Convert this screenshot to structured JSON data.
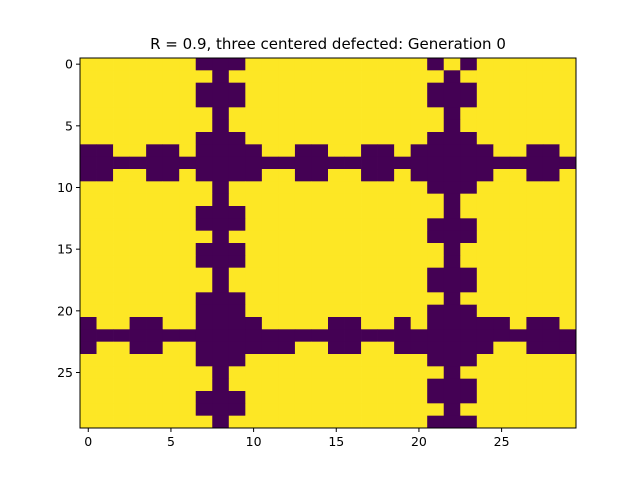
{
  "chart_data": {
    "type": "heatmap",
    "title": "R = 0.9, three centered defected: Generation 0",
    "xlabel": "",
    "ylabel": "",
    "xlim": [
      -0.5,
      29.5
    ],
    "ylim": [
      29.5,
      -0.5
    ],
    "xticks": [
      0,
      5,
      10,
      15,
      20,
      25
    ],
    "yticks": [
      0,
      5,
      10,
      15,
      20,
      25
    ],
    "grid": false,
    "colormap": "viridis",
    "colors": {
      "high": "#fde725",
      "low": "#440154"
    },
    "rows": 30,
    "cols": 30,
    "matrix": [
      [
        1,
        1,
        1,
        1,
        1,
        1,
        1,
        0,
        0,
        0,
        1,
        1,
        1,
        1,
        1,
        1,
        1,
        1,
        1,
        1,
        1,
        0,
        1,
        0,
        1,
        1,
        1,
        1,
        1,
        1
      ],
      [
        1,
        1,
        1,
        1,
        1,
        1,
        1,
        1,
        0,
        1,
        1,
        1,
        1,
        1,
        1,
        1,
        1,
        1,
        1,
        1,
        1,
        1,
        0,
        1,
        1,
        1,
        1,
        1,
        1,
        1
      ],
      [
        1,
        1,
        1,
        1,
        1,
        1,
        1,
        0,
        0,
        0,
        1,
        1,
        1,
        1,
        1,
        1,
        1,
        1,
        1,
        1,
        1,
        0,
        0,
        0,
        1,
        1,
        1,
        1,
        1,
        1
      ],
      [
        1,
        1,
        1,
        1,
        1,
        1,
        1,
        0,
        0,
        0,
        1,
        1,
        1,
        1,
        1,
        1,
        1,
        1,
        1,
        1,
        1,
        0,
        0,
        0,
        1,
        1,
        1,
        1,
        1,
        1
      ],
      [
        1,
        1,
        1,
        1,
        1,
        1,
        1,
        1,
        0,
        1,
        1,
        1,
        1,
        1,
        1,
        1,
        1,
        1,
        1,
        1,
        1,
        1,
        0,
        1,
        1,
        1,
        1,
        1,
        1,
        1
      ],
      [
        1,
        1,
        1,
        1,
        1,
        1,
        1,
        1,
        0,
        1,
        1,
        1,
        1,
        1,
        1,
        1,
        1,
        1,
        1,
        1,
        1,
        1,
        0,
        1,
        1,
        1,
        1,
        1,
        1,
        1
      ],
      [
        1,
        1,
        1,
        1,
        1,
        1,
        1,
        0,
        0,
        0,
        1,
        1,
        1,
        1,
        1,
        1,
        1,
        1,
        1,
        1,
        1,
        0,
        0,
        0,
        1,
        1,
        1,
        1,
        1,
        1
      ],
      [
        0,
        0,
        1,
        1,
        0,
        0,
        1,
        0,
        0,
        0,
        0,
        1,
        1,
        0,
        0,
        1,
        1,
        0,
        0,
        1,
        0,
        0,
        0,
        0,
        0,
        1,
        1,
        0,
        0,
        1
      ],
      [
        0,
        0,
        0,
        0,
        0,
        0,
        0,
        0,
        0,
        0,
        0,
        0,
        0,
        0,
        0,
        0,
        0,
        0,
        0,
        0,
        0,
        0,
        0,
        0,
        0,
        0,
        0,
        0,
        0,
        0
      ],
      [
        0,
        0,
        1,
        1,
        0,
        0,
        1,
        0,
        0,
        0,
        0,
        1,
        1,
        0,
        0,
        1,
        1,
        0,
        0,
        1,
        0,
        0,
        0,
        0,
        0,
        1,
        1,
        0,
        0,
        1
      ],
      [
        1,
        1,
        1,
        1,
        1,
        1,
        1,
        1,
        0,
        1,
        1,
        1,
        1,
        1,
        1,
        1,
        1,
        1,
        1,
        1,
        1,
        0,
        0,
        0,
        1,
        1,
        1,
        1,
        1,
        1
      ],
      [
        1,
        1,
        1,
        1,
        1,
        1,
        1,
        1,
        0,
        1,
        1,
        1,
        1,
        1,
        1,
        1,
        1,
        1,
        1,
        1,
        1,
        1,
        0,
        1,
        1,
        1,
        1,
        1,
        1,
        1
      ],
      [
        1,
        1,
        1,
        1,
        1,
        1,
        1,
        0,
        0,
        0,
        1,
        1,
        1,
        1,
        1,
        1,
        1,
        1,
        1,
        1,
        1,
        1,
        0,
        1,
        1,
        1,
        1,
        1,
        1,
        1
      ],
      [
        1,
        1,
        1,
        1,
        1,
        1,
        1,
        0,
        0,
        0,
        1,
        1,
        1,
        1,
        1,
        1,
        1,
        1,
        1,
        1,
        1,
        0,
        0,
        0,
        1,
        1,
        1,
        1,
        1,
        1
      ],
      [
        1,
        1,
        1,
        1,
        1,
        1,
        1,
        1,
        0,
        1,
        1,
        1,
        1,
        1,
        1,
        1,
        1,
        1,
        1,
        1,
        1,
        0,
        0,
        0,
        1,
        1,
        1,
        1,
        1,
        1
      ],
      [
        1,
        1,
        1,
        1,
        1,
        1,
        1,
        0,
        0,
        0,
        1,
        1,
        1,
        1,
        1,
        1,
        1,
        1,
        1,
        1,
        1,
        1,
        0,
        1,
        1,
        1,
        1,
        1,
        1,
        1
      ],
      [
        1,
        1,
        1,
        1,
        1,
        1,
        1,
        0,
        0,
        0,
        1,
        1,
        1,
        1,
        1,
        1,
        1,
        1,
        1,
        1,
        1,
        1,
        0,
        1,
        1,
        1,
        1,
        1,
        1,
        1
      ],
      [
        1,
        1,
        1,
        1,
        1,
        1,
        1,
        1,
        0,
        1,
        1,
        1,
        1,
        1,
        1,
        1,
        1,
        1,
        1,
        1,
        1,
        0,
        0,
        0,
        1,
        1,
        1,
        1,
        1,
        1
      ],
      [
        1,
        1,
        1,
        1,
        1,
        1,
        1,
        1,
        0,
        1,
        1,
        1,
        1,
        1,
        1,
        1,
        1,
        1,
        1,
        1,
        1,
        0,
        0,
        0,
        1,
        1,
        1,
        1,
        1,
        1
      ],
      [
        1,
        1,
        1,
        1,
        1,
        1,
        1,
        0,
        0,
        0,
        1,
        1,
        1,
        1,
        1,
        1,
        1,
        1,
        1,
        1,
        1,
        1,
        0,
        1,
        1,
        1,
        1,
        1,
        1,
        1
      ],
      [
        1,
        1,
        1,
        1,
        1,
        1,
        1,
        0,
        0,
        0,
        1,
        1,
        1,
        1,
        1,
        1,
        1,
        1,
        1,
        1,
        1,
        0,
        0,
        0,
        1,
        1,
        1,
        1,
        1,
        1
      ],
      [
        0,
        1,
        1,
        0,
        0,
        1,
        1,
        0,
        0,
        0,
        0,
        1,
        1,
        1,
        1,
        0,
        0,
        1,
        1,
        0,
        1,
        0,
        0,
        0,
        0,
        0,
        1,
        0,
        0,
        1
      ],
      [
        0,
        0,
        0,
        0,
        0,
        0,
        0,
        0,
        0,
        0,
        0,
        0,
        0,
        0,
        0,
        0,
        0,
        0,
        0,
        0,
        0,
        0,
        0,
        0,
        0,
        0,
        0,
        0,
        0,
        0
      ],
      [
        0,
        1,
        1,
        0,
        0,
        1,
        1,
        0,
        0,
        0,
        0,
        0,
        0,
        1,
        1,
        0,
        0,
        1,
        1,
        0,
        0,
        0,
        0,
        0,
        0,
        1,
        1,
        0,
        0,
        0
      ],
      [
        1,
        1,
        1,
        1,
        1,
        1,
        1,
        0,
        0,
        0,
        1,
        1,
        1,
        1,
        1,
        1,
        1,
        1,
        1,
        1,
        1,
        0,
        0,
        0,
        1,
        1,
        1,
        1,
        1,
        1
      ],
      [
        1,
        1,
        1,
        1,
        1,
        1,
        1,
        1,
        0,
        1,
        1,
        1,
        1,
        1,
        1,
        1,
        1,
        1,
        1,
        1,
        1,
        1,
        0,
        1,
        1,
        1,
        1,
        1,
        1,
        1
      ],
      [
        1,
        1,
        1,
        1,
        1,
        1,
        1,
        1,
        0,
        1,
        1,
        1,
        1,
        1,
        1,
        1,
        1,
        1,
        1,
        1,
        1,
        0,
        0,
        0,
        1,
        1,
        1,
        1,
        1,
        1
      ],
      [
        1,
        1,
        1,
        1,
        1,
        1,
        1,
        0,
        0,
        0,
        1,
        1,
        1,
        1,
        1,
        1,
        1,
        1,
        1,
        1,
        1,
        0,
        0,
        0,
        1,
        1,
        1,
        1,
        1,
        1
      ],
      [
        1,
        1,
        1,
        1,
        1,
        1,
        1,
        0,
        0,
        0,
        1,
        1,
        1,
        1,
        1,
        1,
        1,
        1,
        1,
        1,
        1,
        1,
        0,
        1,
        1,
        1,
        1,
        1,
        1,
        1
      ],
      [
        1,
        1,
        1,
        1,
        1,
        1,
        1,
        1,
        0,
        1,
        1,
        1,
        1,
        1,
        1,
        1,
        1,
        1,
        1,
        1,
        1,
        0,
        0,
        0,
        1,
        1,
        1,
        1,
        1,
        1
      ]
    ]
  }
}
